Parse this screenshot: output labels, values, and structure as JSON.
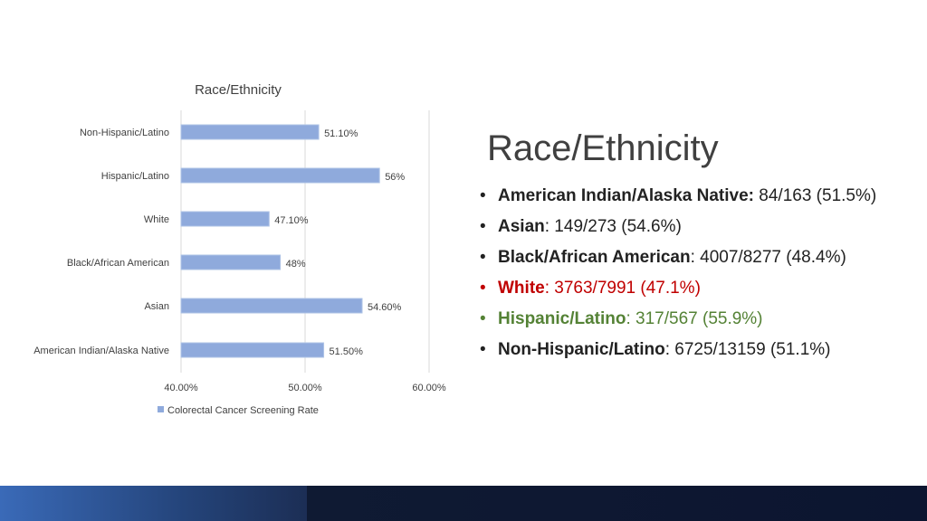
{
  "chart_data": {
    "type": "bar",
    "orientation": "horizontal",
    "title": "Race/Ethnicity",
    "categories": [
      "Non-Hispanic/Latino",
      "Hispanic/Latino",
      "White",
      "Black/African American",
      "Asian",
      "American Indian/Alaska Native"
    ],
    "series": [
      {
        "name": "Colorectal Cancer Screening Rate",
        "values": [
          51.1,
          56,
          47.1,
          48,
          54.6,
          51.5
        ],
        "value_labels": [
          "51.10%",
          "56%",
          "47.10%",
          "48%",
          "54.60%",
          "51.50%"
        ],
        "color": "#8faadc"
      }
    ],
    "xlim": [
      40,
      60
    ],
    "x_ticks": [
      40,
      50,
      60
    ],
    "x_tick_labels": [
      "40.00%",
      "50.00%",
      "60.00%"
    ],
    "grid": true,
    "legend_position": "bottom"
  },
  "slide": {
    "title": "Race/Ethnicity",
    "bullets": [
      {
        "label": "American Indian/Alaska Native:",
        "text": " 84/163 (51.5%)",
        "color": "#222222"
      },
      {
        "label": "Asian",
        "text": ": 149/273 (54.6%)",
        "color": "#222222"
      },
      {
        "label": "Black/African American",
        "text": ": 4007/8277 (48.4%)",
        "color": "#222222"
      },
      {
        "label": "White",
        "text": ": 3763/7991 (47.1%)",
        "color": "#c00000"
      },
      {
        "label": "Hispanic/Latino",
        "text": ": 317/567 (55.9%)",
        "color": "#548235"
      },
      {
        "label": "Non-Hispanic/Latino",
        "text": ": 6725/13159 (51.1%)",
        "color": "#222222"
      }
    ]
  }
}
